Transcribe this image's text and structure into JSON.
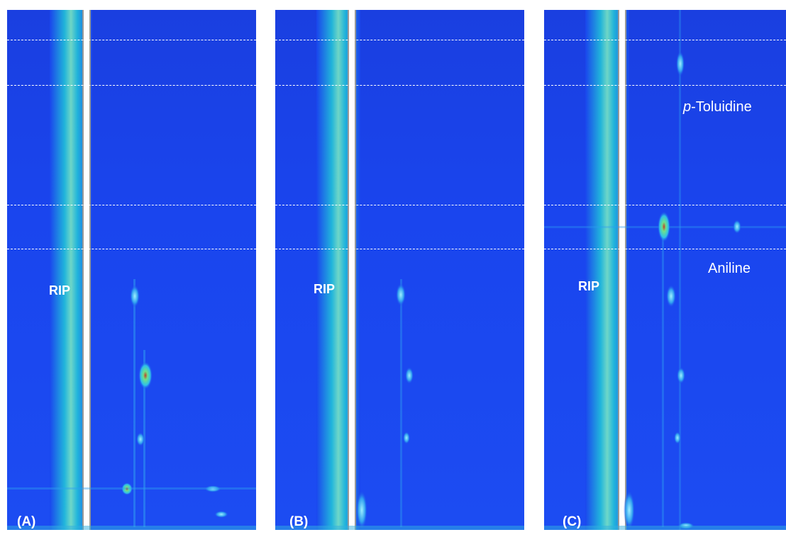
{
  "panels": [
    {
      "id": "A",
      "label": "(A)",
      "rip_label": "RIP"
    },
    {
      "id": "B",
      "label": "(B)",
      "rip_label": "RIP"
    },
    {
      "id": "C",
      "label": "(C)",
      "rip_label": "RIP"
    }
  ],
  "compound_labels": {
    "p_toluidine_prefix": "p",
    "p_toluidine_rest": "-Toluidine",
    "aniline": "Aniline"
  },
  "colors": {
    "background": "#1a45ee",
    "rip_line": "#ffffff",
    "spot": "#2fe0a0",
    "spot_core": "#c0402a"
  }
}
